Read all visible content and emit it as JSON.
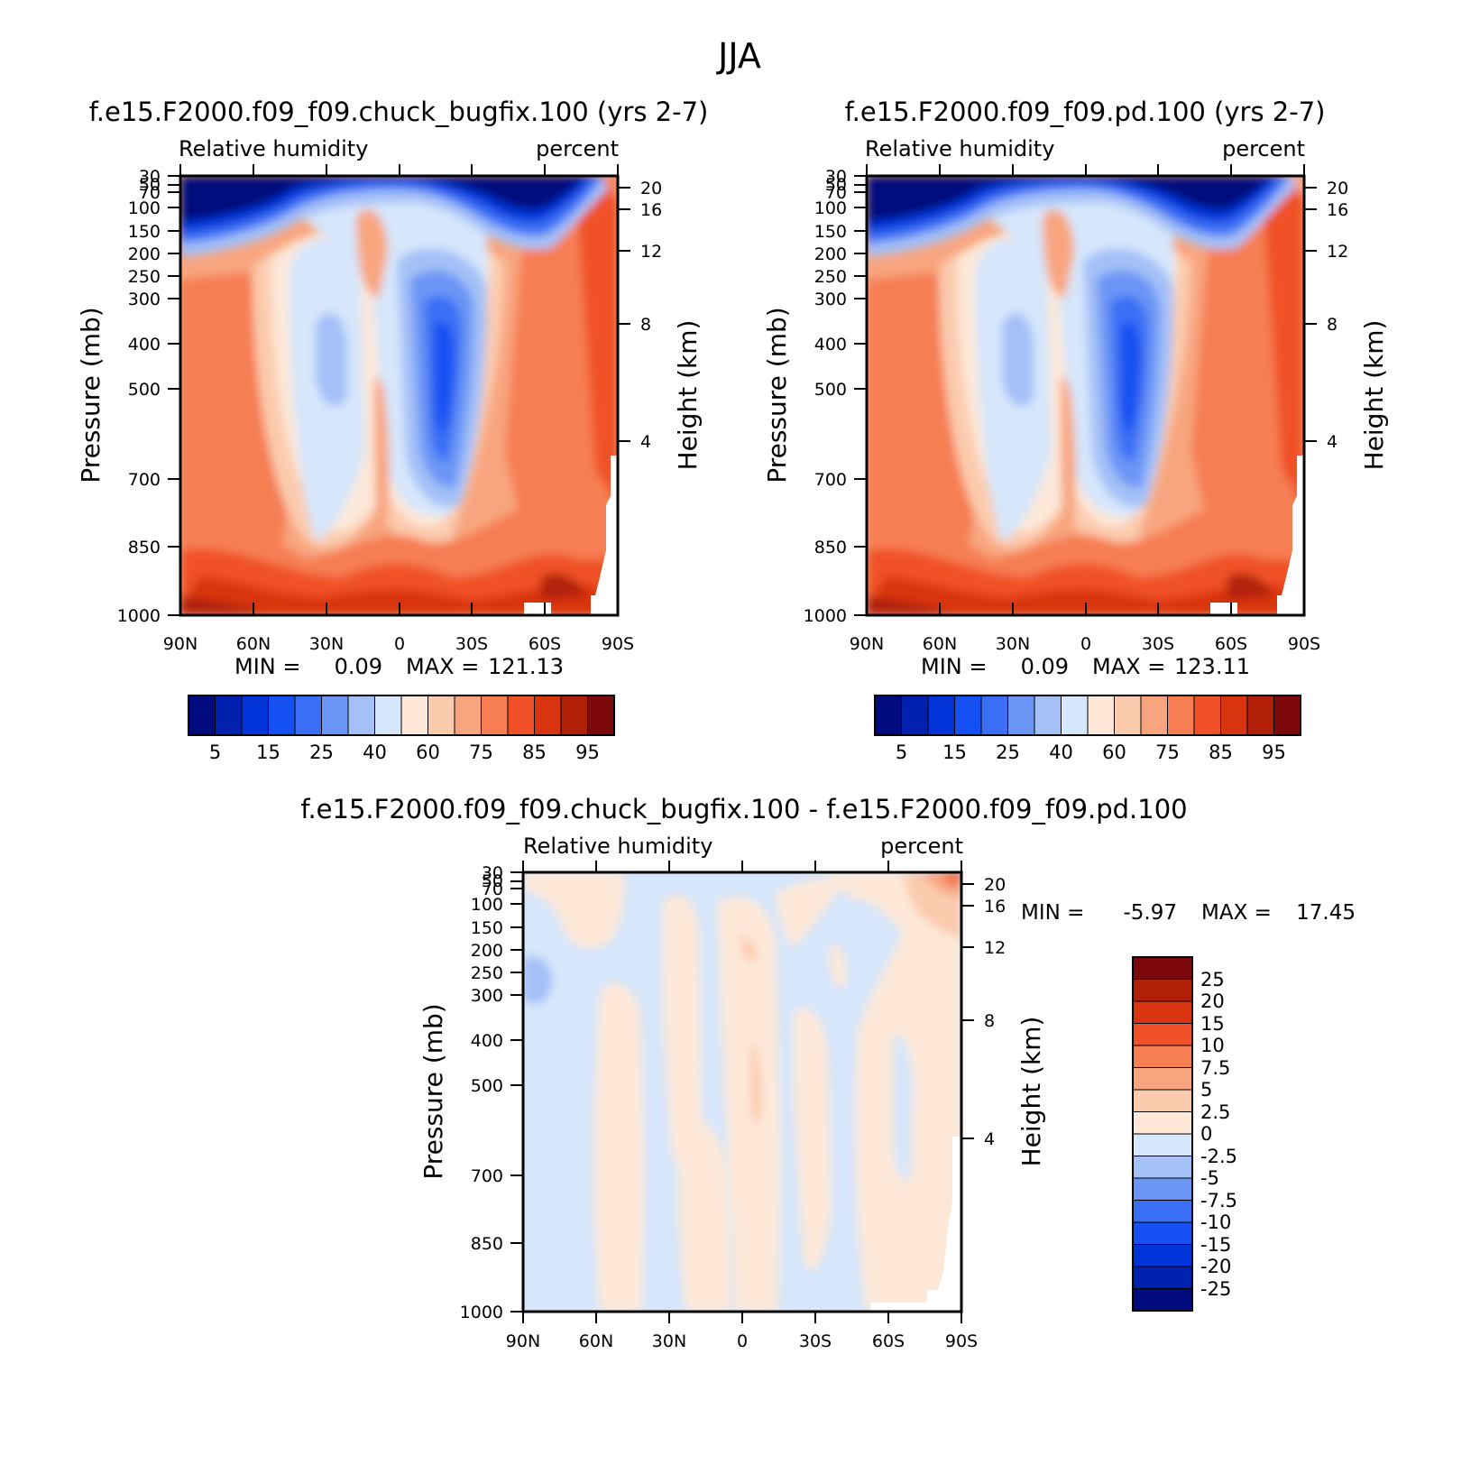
{
  "page_title": "JJA",
  "chart_data": [
    {
      "type": "heatmap",
      "title": "f.e15.F2000.f09_f09.chuck_bugfix.100 (yrs 2-7)",
      "subtitle_left": "Relative humidity",
      "subtitle_right": "percent",
      "ylabel": "Pressure (mb)",
      "ylabel_right": "Height (km)",
      "x_ticks": [
        "90N",
        "60N",
        "30N",
        "0",
        "30S",
        "60S",
        "90S"
      ],
      "y_ticks": [
        "30",
        "50",
        "70",
        "100",
        "150",
        "200",
        "250",
        "300",
        "400",
        "500",
        "700",
        "850",
        "1000"
      ],
      "y_ticks_right": [
        "20",
        "16",
        "12",
        "8",
        "4"
      ],
      "min_label": "MIN =",
      "min_value": "0.09",
      "max_label": "MAX =",
      "max_value": "121.13",
      "colorbar_labels": [
        "5",
        "15",
        "25",
        "40",
        "60",
        "75",
        "85",
        "95"
      ],
      "colorbar_colors": [
        "#000c7d",
        "#0021b0",
        "#0034d8",
        "#1550f2",
        "#3a6ff5",
        "#6a95f5",
        "#a3c0f7",
        "#d6e6fb",
        "#fde8d8",
        "#fbcbae",
        "#f8a57f",
        "#f67e52",
        "#f05128",
        "#d83410",
        "#b02008",
        "#7d0a0a"
      ]
    },
    {
      "type": "heatmap",
      "title": "f.e15.F2000.f09_f09.pd.100 (yrs 2-7)",
      "subtitle_left": "Relative humidity",
      "subtitle_right": "percent",
      "ylabel": "Pressure (mb)",
      "ylabel_right": "Height (km)",
      "x_ticks": [
        "90N",
        "60N",
        "30N",
        "0",
        "30S",
        "60S",
        "90S"
      ],
      "y_ticks": [
        "30",
        "50",
        "70",
        "100",
        "150",
        "200",
        "250",
        "300",
        "400",
        "500",
        "700",
        "850",
        "1000"
      ],
      "y_ticks_right": [
        "20",
        "16",
        "12",
        "8",
        "4"
      ],
      "min_label": "MIN =",
      "min_value": "0.09",
      "max_label": "MAX =",
      "max_value": "123.11",
      "colorbar_labels": [
        "5",
        "15",
        "25",
        "40",
        "60",
        "75",
        "85",
        "95"
      ],
      "colorbar_colors": [
        "#000c7d",
        "#0021b0",
        "#0034d8",
        "#1550f2",
        "#3a6ff5",
        "#6a95f5",
        "#a3c0f7",
        "#d6e6fb",
        "#fde8d8",
        "#fbcbae",
        "#f8a57f",
        "#f67e52",
        "#f05128",
        "#d83410",
        "#b02008",
        "#7d0a0a"
      ]
    },
    {
      "type": "heatmap",
      "title": "f.e15.F2000.f09_f09.chuck_bugfix.100 - f.e15.F2000.f09_f09.pd.100",
      "subtitle_left": "Relative humidity",
      "subtitle_right": "percent",
      "ylabel": "Pressure (mb)",
      "ylabel_right": "Height (km)",
      "x_ticks": [
        "90N",
        "60N",
        "30N",
        "0",
        "30S",
        "60S",
        "90S"
      ],
      "y_ticks": [
        "30",
        "50",
        "70",
        "100",
        "150",
        "200",
        "250",
        "300",
        "400",
        "500",
        "700",
        "850",
        "1000"
      ],
      "y_ticks_right": [
        "20",
        "16",
        "12",
        "8",
        "4"
      ],
      "min_label": "MIN =",
      "min_value": "-5.97",
      "max_label": "MAX =",
      "max_value": "17.45",
      "colorbar_labels": [
        "25",
        "20",
        "15",
        "10",
        "7.5",
        "5",
        "2.5",
        "0",
        "-2.5",
        "-5",
        "-7.5",
        "-10",
        "-15",
        "-20",
        "-25"
      ],
      "colorbar_colors": [
        "#7d0a0a",
        "#b02008",
        "#d83410",
        "#f05128",
        "#f67e52",
        "#f8a57f",
        "#fbcbae",
        "#fde8d8",
        "#d6e6fb",
        "#a3c0f7",
        "#6a95f5",
        "#3a6ff5",
        "#1550f2",
        "#0034d8",
        "#0021b0",
        "#000c7d"
      ]
    }
  ]
}
